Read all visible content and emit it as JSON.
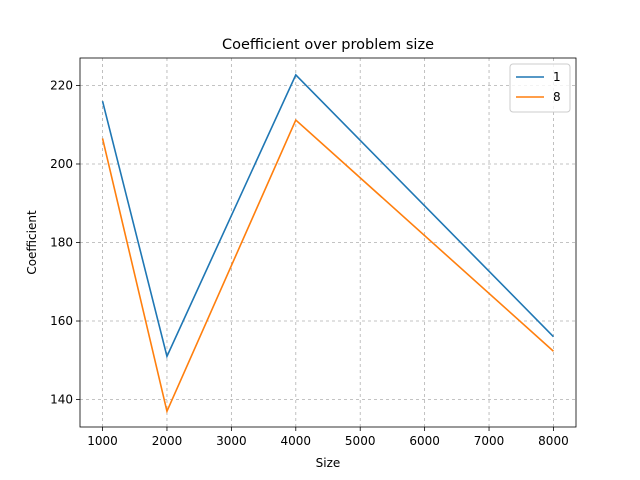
{
  "chart_data": {
    "type": "line",
    "title": "Coefficient over problem size",
    "xlabel": "Size",
    "ylabel": "Coefficient",
    "x": [
      1000,
      2000,
      4000,
      8000
    ],
    "xticks": [
      1000,
      2000,
      3000,
      4000,
      5000,
      6000,
      7000,
      8000
    ],
    "yticks": [
      140,
      160,
      180,
      200,
      220
    ],
    "xlim": [
      650,
      8350
    ],
    "ylim": [
      133,
      227
    ],
    "grid": true,
    "legend_position": "top-right",
    "series": [
      {
        "name": "1",
        "color": "#1f77b4",
        "values": [
          216,
          151,
          222.7,
          156
        ]
      },
      {
        "name": "8",
        "color": "#ff7f0e",
        "values": [
          206.5,
          137,
          211.2,
          152.3
        ]
      }
    ]
  }
}
